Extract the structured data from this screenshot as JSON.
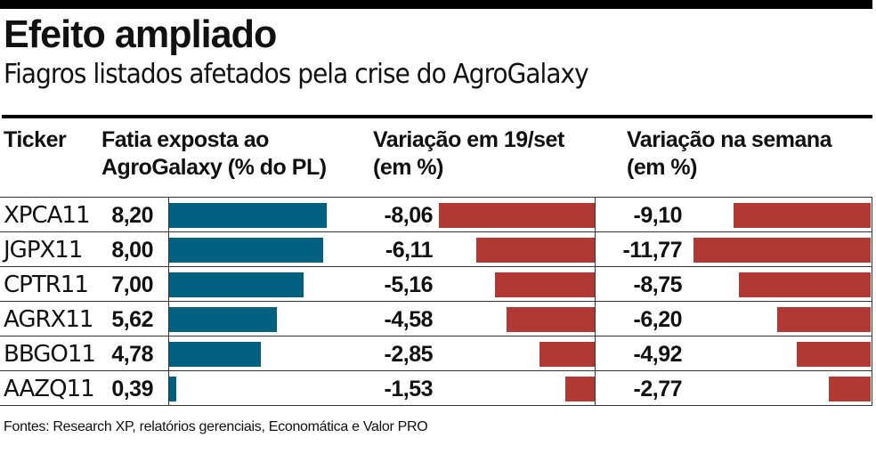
{
  "header": {
    "title": "Efeito ampliado",
    "subtitle": "Fiagros listados afetados pela crise do AgroGalaxy"
  },
  "columns": {
    "ticker": "Ticker",
    "fatia_line1": "Fatia exposta ao",
    "fatia_line2": "AgroGalaxy (% do PL)",
    "var19_line1": "Variação em 19/set",
    "var19_line2": "(em %)",
    "varsem_line1": "Variação na semana",
    "varsem_line2": "(em %)"
  },
  "rows": [
    {
      "ticker": "XPCA11",
      "fatia": "8,20",
      "var19": "-8,06",
      "varsem": "-9,10"
    },
    {
      "ticker": "JGPX11",
      "fatia": "8,00",
      "var19": "-6,11",
      "varsem": "-11,77"
    },
    {
      "ticker": "CPTR11",
      "fatia": "7,00",
      "var19": "-5,16",
      "varsem": "-8,75"
    },
    {
      "ticker": "AGRX11",
      "fatia": "5,62",
      "var19": "-4,58",
      "varsem": "-6,20"
    },
    {
      "ticker": "BBGO11",
      "fatia": "4,78",
      "var19": "-2,85",
      "varsem": "-4,92"
    },
    {
      "ticker": "AAZQ11",
      "fatia": "0,39",
      "var19": "-1,53",
      "varsem": "-2,77"
    }
  ],
  "footer": "Fontes: Research XP, relatórios gerenciais, Economática e Valor PRO",
  "colors": {
    "teal": "#00607f",
    "red": "#b03a33"
  },
  "chart_data": {
    "type": "table",
    "title": "Efeito ampliado",
    "subtitle": "Fiagros listados afetados pela crise do AgroGalaxy",
    "categories": [
      "XPCA11",
      "JGPX11",
      "CPTR11",
      "AGRX11",
      "BBGO11",
      "AAZQ11"
    ],
    "series": [
      {
        "name": "Fatia exposta ao AgroGalaxy (% do PL)",
        "values": [
          8.2,
          8.0,
          7.0,
          5.62,
          4.78,
          0.39
        ]
      },
      {
        "name": "Variação em 19/set (em %)",
        "values": [
          -8.06,
          -6.11,
          -5.16,
          -4.58,
          -2.85,
          -1.53
        ]
      },
      {
        "name": "Variação na semana (em %)",
        "values": [
          -9.1,
          -11.77,
          -8.75,
          -6.2,
          -4.92,
          -2.77
        ]
      }
    ]
  }
}
